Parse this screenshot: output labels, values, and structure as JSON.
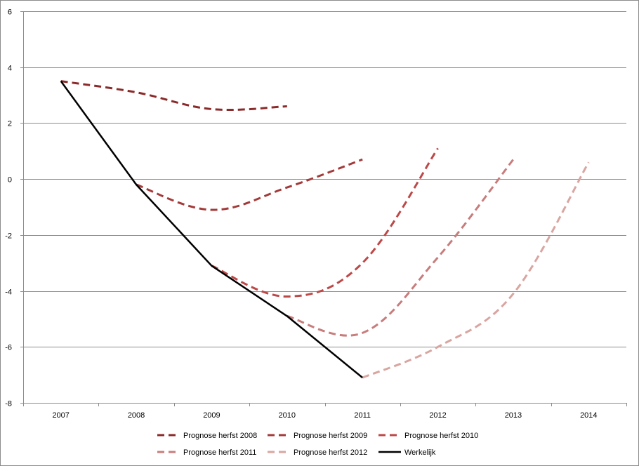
{
  "chart_data": {
    "type": "line",
    "title": "",
    "xlabel": "",
    "ylabel": "",
    "categories": [
      "2007",
      "2008",
      "2009",
      "2010",
      "2011",
      "2012",
      "2013",
      "2014"
    ],
    "ylim": [
      -8,
      6
    ],
    "yticks": [
      6,
      4,
      2,
      0,
      -2,
      -4,
      -6,
      -8
    ],
    "grid": true,
    "legend_position": "bottom",
    "series": [
      {
        "name": "Prognose herfst 2008",
        "color": "#8b2a2a",
        "dashed": true,
        "values": [
          3.5,
          3.1,
          2.5,
          2.6,
          null,
          null,
          null,
          null
        ]
      },
      {
        "name": "Prognose herfst 2009",
        "color": "#a33a3a",
        "dashed": true,
        "values": [
          null,
          -0.2,
          -1.1,
          -0.3,
          0.7,
          null,
          null,
          null
        ]
      },
      {
        "name": "Prognose herfst 2010",
        "color": "#bd4848",
        "dashed": true,
        "values": [
          null,
          null,
          -3.1,
          -4.2,
          -3.0,
          1.1,
          null,
          null
        ]
      },
      {
        "name": "Prognose herfst 2011",
        "color": "#c87c7c",
        "dashed": true,
        "values": [
          null,
          null,
          null,
          -4.9,
          -5.5,
          -2.8,
          0.7,
          null
        ]
      },
      {
        "name": "Prognose herfst 2012",
        "color": "#d9a5a0",
        "dashed": true,
        "values": [
          null,
          null,
          null,
          null,
          -7.1,
          -6.0,
          -4.1,
          0.6
        ]
      },
      {
        "name": "Werkelijk",
        "color": "#000000",
        "dashed": false,
        "values": [
          3.5,
          -0.2,
          -3.1,
          -4.9,
          -7.1,
          null,
          null,
          null
        ]
      }
    ]
  }
}
